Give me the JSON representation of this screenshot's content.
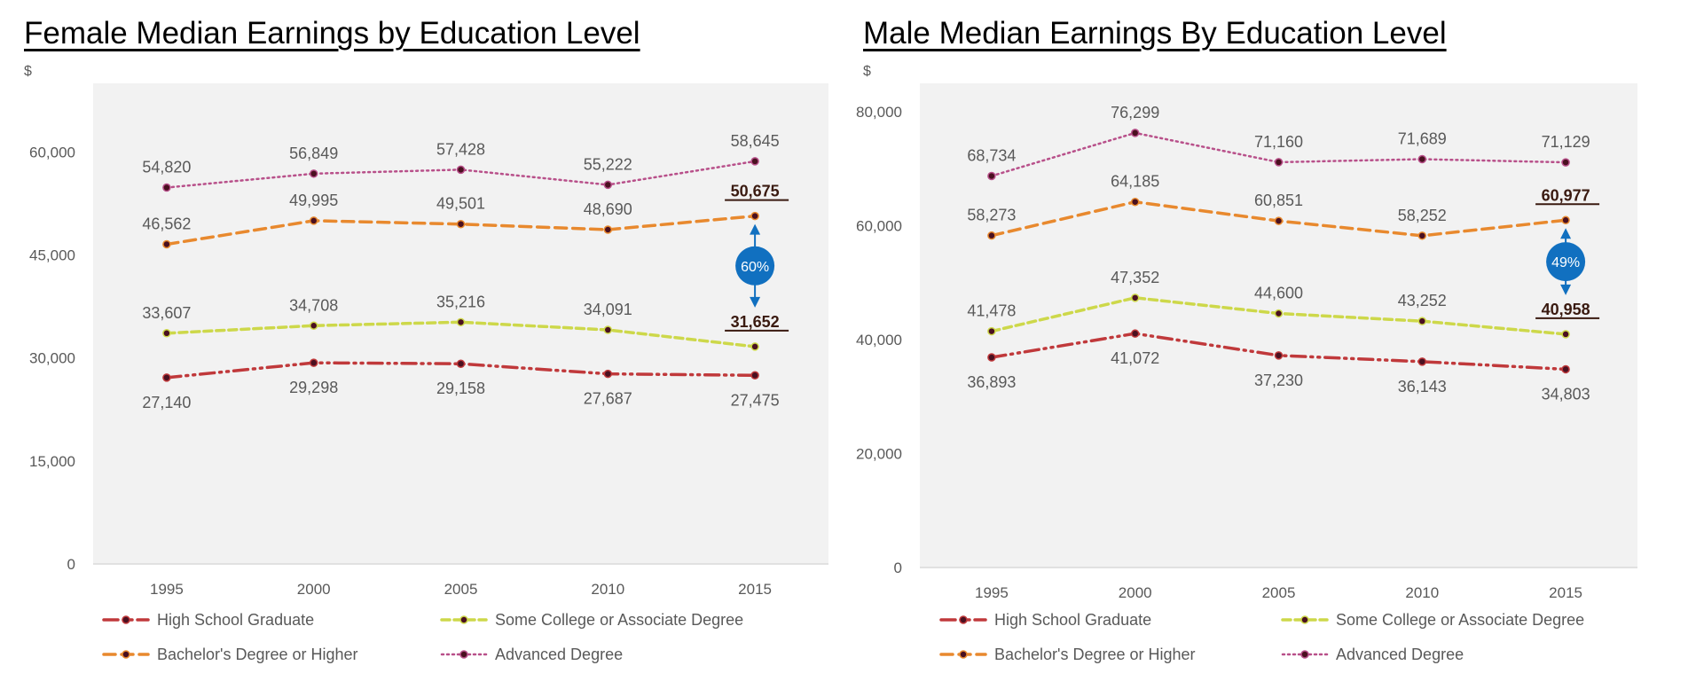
{
  "chart_data": [
    {
      "type": "line",
      "title": "Female Median Earnings by Education Level",
      "ylabel": "$",
      "xlabel": "",
      "categories": [
        "1995",
        "2000",
        "2005",
        "2010",
        "2015"
      ],
      "ylim": [
        0,
        70000
      ],
      "yticks": [
        0,
        15000,
        30000,
        45000,
        60000
      ],
      "ytick_labels": [
        "0",
        "15,000",
        "30,000",
        "45,000",
        "60,000"
      ],
      "grid": false,
      "legend_position": "bottom",
      "series": [
        {
          "name": "High School Graduate",
          "color": "#c0393b",
          "values": [
            27140,
            29298,
            29158,
            27687,
            27475
          ],
          "labels": [
            "27,140",
            "29,298",
            "29,158",
            "27,687",
            "27,475"
          ]
        },
        {
          "name": "Some College or Associate Degree",
          "color": "#cdd84a",
          "values": [
            33607,
            34708,
            35216,
            34091,
            31652
          ],
          "labels": [
            "33,607",
            "34,708",
            "35,216",
            "34,091",
            "31,652"
          ]
        },
        {
          "name": "Bachelor's Degree or Higher",
          "color": "#e8892e",
          "values": [
            46562,
            49995,
            49501,
            48690,
            50675
          ],
          "labels": [
            "46,562",
            "49,995",
            "49,501",
            "48,690",
            "50,675"
          ]
        },
        {
          "name": "Advanced Degree",
          "color": "#b8508a",
          "values": [
            54820,
            56849,
            57428,
            55222,
            58645
          ],
          "labels": [
            "54,820",
            "56,849",
            "57,428",
            "55,222",
            "58,645"
          ]
        }
      ],
      "annotation": {
        "text": "60%",
        "color": "#1170c0"
      }
    },
    {
      "type": "line",
      "title": "Male Median Earnings By Education Level",
      "ylabel": "$",
      "xlabel": "",
      "categories": [
        "1995",
        "2000",
        "2005",
        "2010",
        "2015"
      ],
      "ylim": [
        0,
        85000
      ],
      "yticks": [
        0,
        20000,
        40000,
        60000,
        80000
      ],
      "ytick_labels": [
        "0",
        "20,000",
        "40,000",
        "60,000",
        "80,000"
      ],
      "grid": false,
      "legend_position": "bottom",
      "series": [
        {
          "name": "High School Graduate",
          "color": "#c0393b",
          "values": [
            36893,
            41072,
            37230,
            36143,
            34803
          ],
          "labels": [
            "36,893",
            "41,072",
            "37,230",
            "36,143",
            "34,803"
          ]
        },
        {
          "name": "Some College or Associate Degree",
          "color": "#cdd84a",
          "values": [
            41478,
            47352,
            44600,
            43252,
            40958
          ],
          "labels": [
            "41,478",
            "47,352",
            "44,600",
            "43,252",
            "40,958"
          ]
        },
        {
          "name": "Bachelor's Degree or Higher",
          "color": "#e8892e",
          "values": [
            58273,
            64185,
            60851,
            58252,
            60977
          ],
          "labels": [
            "58,273",
            "64,185",
            "60,851",
            "58,252",
            "60,977"
          ]
        },
        {
          "name": "Advanced Degree",
          "color": "#b8508a",
          "values": [
            68734,
            76299,
            71160,
            71689,
            71129
          ],
          "labels": [
            "68,734",
            "76,299",
            "71,160",
            "71,689",
            "71,129"
          ]
        }
      ],
      "annotation": {
        "text": "49%",
        "color": "#1170c0"
      }
    }
  ]
}
